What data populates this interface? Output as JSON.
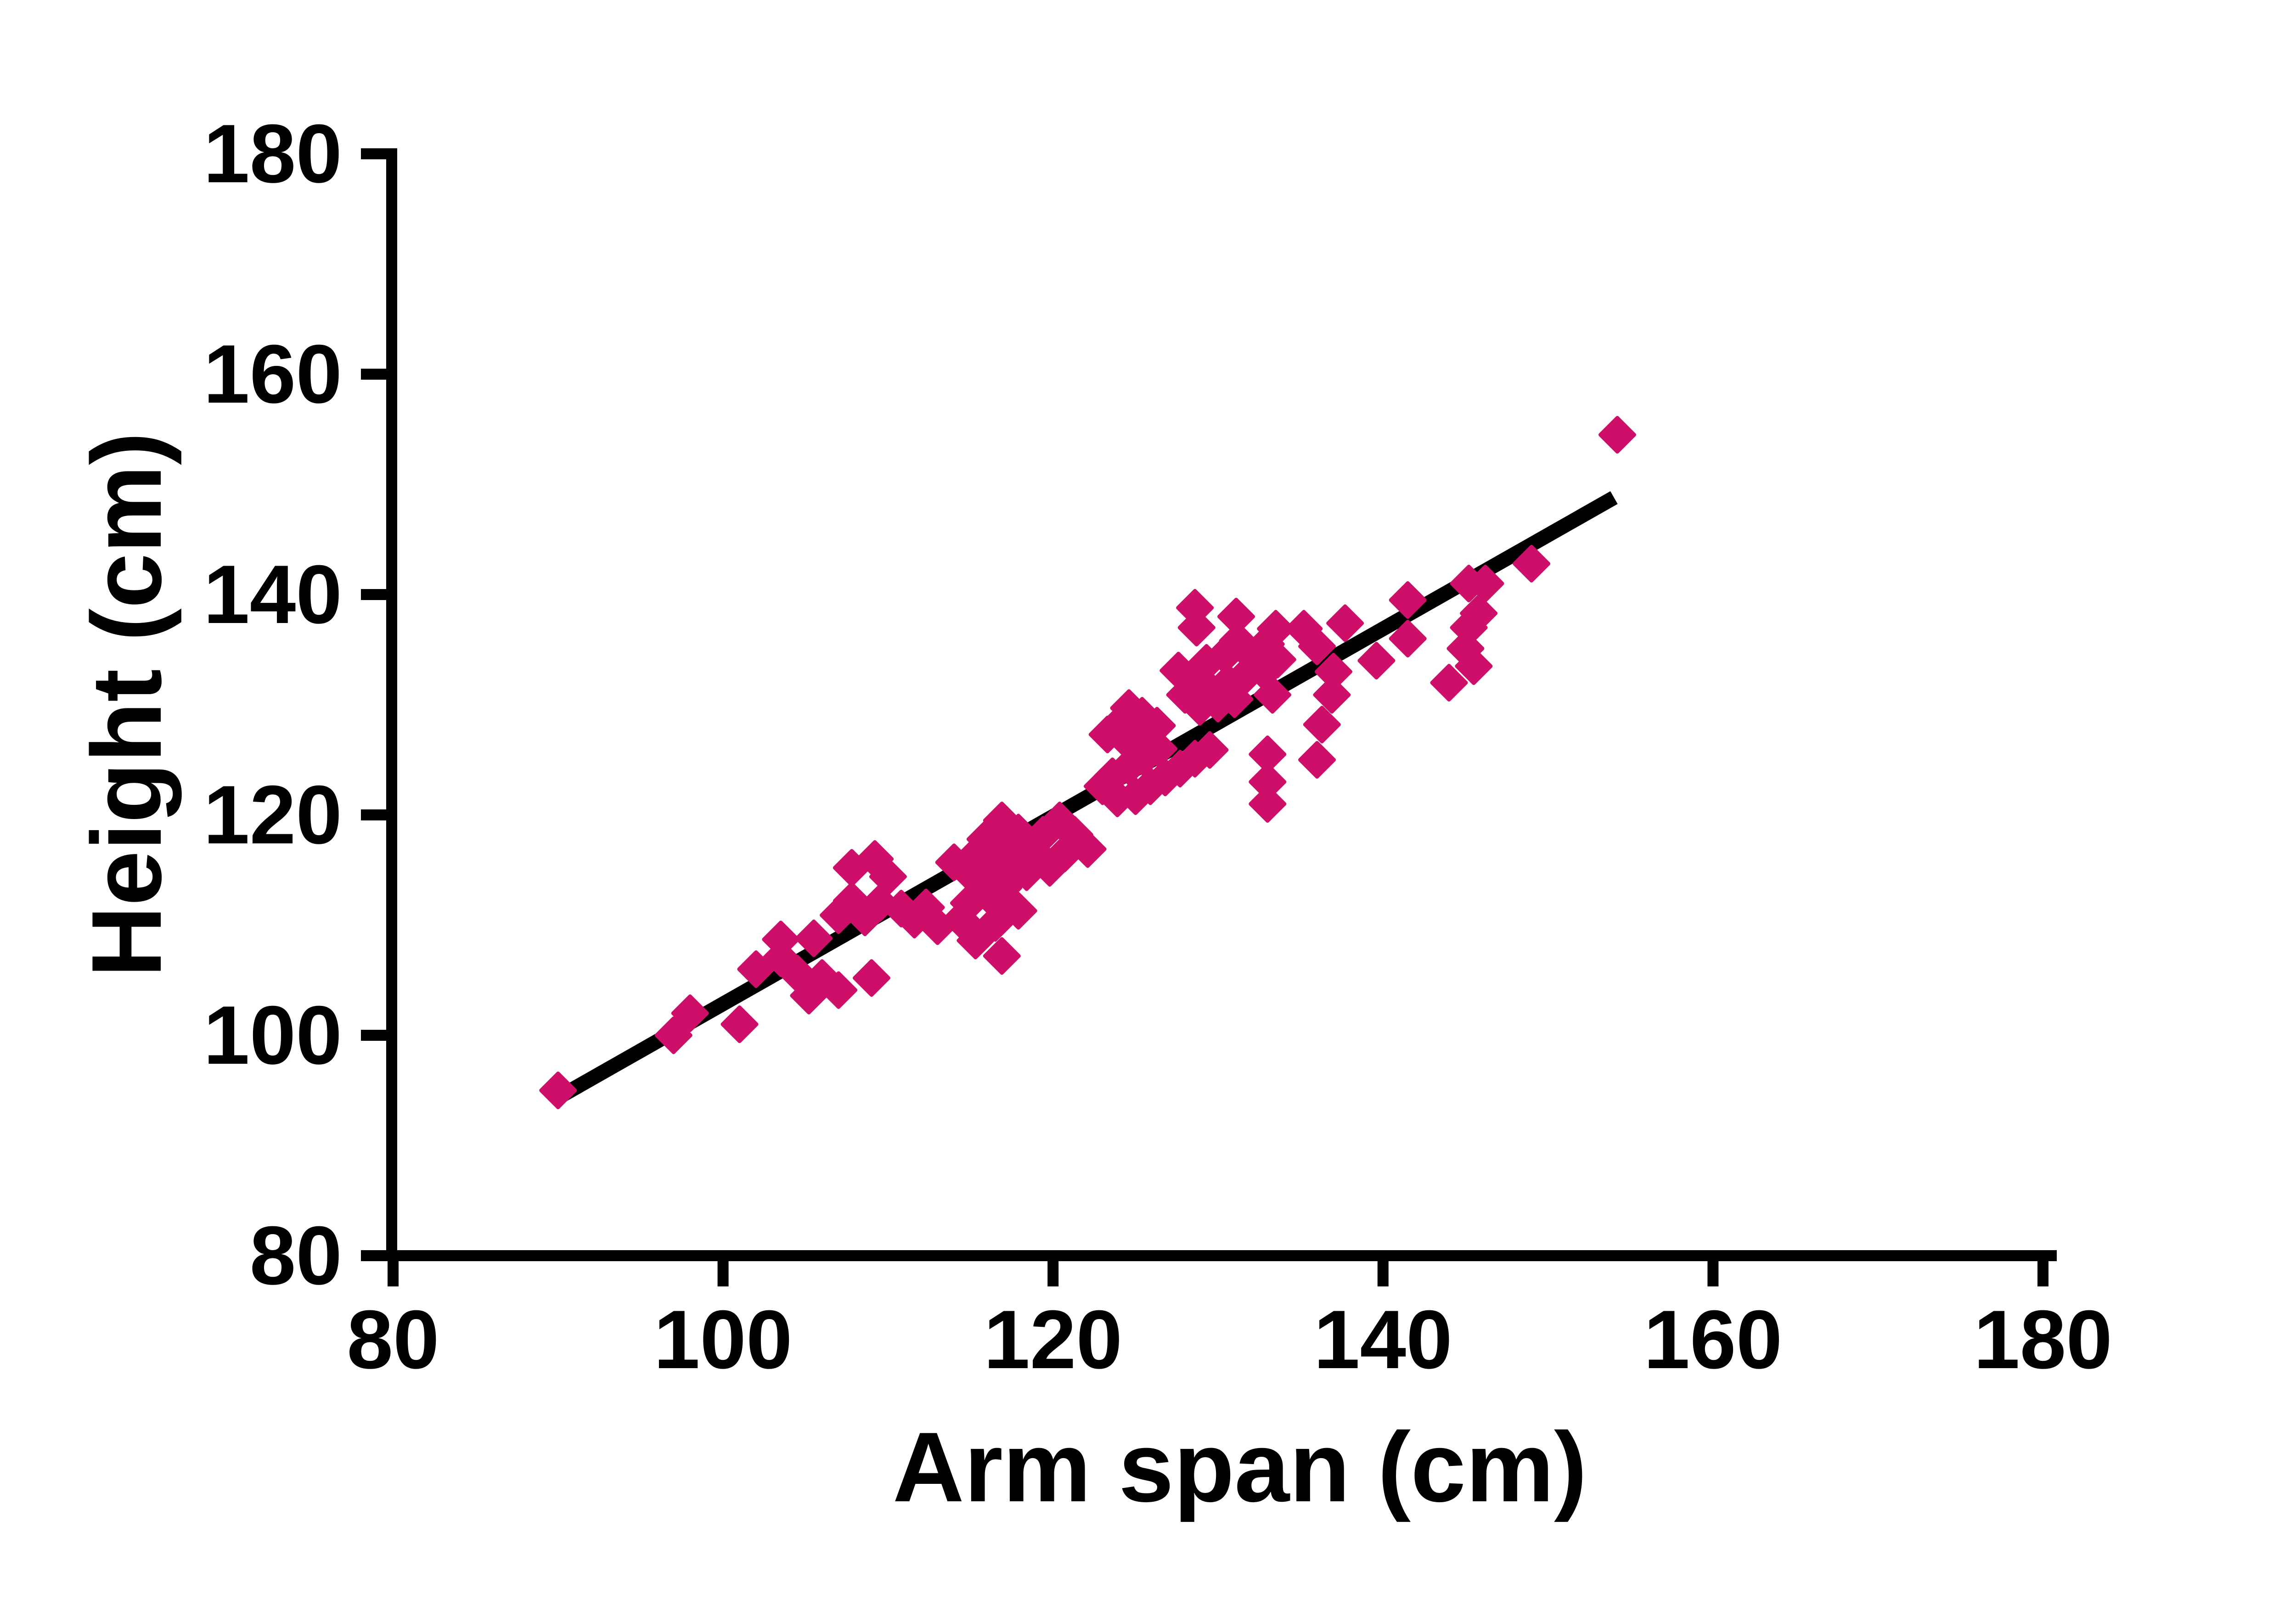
{
  "page": {
    "background": "#ffffff"
  },
  "chart_data": {
    "type": "scatter",
    "title": "",
    "xlabel": "Arm span (cm)",
    "ylabel": "Height (cm)",
    "xlim": [
      80,
      180
    ],
    "ylim": [
      80,
      180
    ],
    "x_ticks": [
      80,
      100,
      120,
      140,
      160,
      180
    ],
    "y_ticks": [
      80,
      100,
      120,
      140,
      160,
      180
    ],
    "grid": false,
    "legend": "none",
    "marker": {
      "shape": "diamond",
      "color": "#CE0F69",
      "size_units": 2
    },
    "axis_color": "#000000",
    "trendline": {
      "type": "linear",
      "x1": 90.3,
      "y1": 94.6,
      "x2": 154.0,
      "y2": 148.8,
      "color": "#000000"
    },
    "points": [
      [
        90,
        95
      ],
      [
        97,
        100
      ],
      [
        98,
        102
      ],
      [
        101,
        101
      ],
      [
        102,
        106
      ],
      [
        103.5,
        108.7
      ],
      [
        103.5,
        107
      ],
      [
        104.5,
        105.6
      ],
      [
        105.5,
        108.8
      ],
      [
        106,
        105.2
      ],
      [
        105.2,
        103.6
      ],
      [
        107,
        104.1
      ],
      [
        109,
        105.2
      ],
      [
        107.8,
        115.2
      ],
      [
        109.2,
        116
      ],
      [
        107.8,
        112.2
      ],
      [
        107,
        110.9
      ],
      [
        108.6,
        110.7
      ],
      [
        109.5,
        112
      ],
      [
        110,
        114.4
      ],
      [
        110.8,
        111.5
      ],
      [
        111.6,
        110.5
      ],
      [
        112.3,
        111.6
      ],
      [
        113,
        109.9
      ],
      [
        115.3,
        108.6
      ],
      [
        114.4,
        110.5
      ],
      [
        114.9,
        112
      ],
      [
        116.3,
        112.4
      ],
      [
        117,
        113.4
      ],
      [
        114,
        115.7
      ],
      [
        115.3,
        114.2
      ],
      [
        116,
        115
      ],
      [
        116.9,
        115.8
      ],
      [
        116.9,
        107.2
      ],
      [
        116.5,
        110.2
      ],
      [
        117.9,
        111.3
      ],
      [
        116.9,
        119.5
      ],
      [
        117.9,
        118.4
      ],
      [
        115.9,
        117.8
      ],
      [
        115.4,
        116.5
      ],
      [
        117.2,
        116.5
      ],
      [
        118.7,
        116.9
      ],
      [
        119.4,
        118.2
      ],
      [
        120.4,
        119.5
      ],
      [
        121.3,
        118.2
      ],
      [
        122.1,
        116.9
      ],
      [
        120.7,
        116.5
      ],
      [
        119.8,
        115.2
      ],
      [
        118.4,
        114.8
      ],
      [
        124.6,
        129.7
      ],
      [
        125.4,
        129
      ],
      [
        123.9,
        128.1
      ],
      [
        123.3,
        127.3
      ],
      [
        124.5,
        126.7
      ],
      [
        125.4,
        127.3
      ],
      [
        126.3,
        128.1
      ],
      [
        126.4,
        126
      ],
      [
        125.5,
        125.2
      ],
      [
        124.6,
        124.4
      ],
      [
        123.6,
        123.5
      ],
      [
        123,
        122.6
      ],
      [
        123.9,
        121.5
      ],
      [
        125,
        121.7
      ],
      [
        125.9,
        122.6
      ],
      [
        126.8,
        123.4
      ],
      [
        127.7,
        124.2
      ],
      [
        128.6,
        125.1
      ],
      [
        129.5,
        125.9
      ],
      [
        128,
        130.9
      ],
      [
        128.5,
        132.3
      ],
      [
        127.6,
        133.1
      ],
      [
        129.3,
        133.8
      ],
      [
        130.4,
        134.5
      ],
      [
        131.2,
        135.8
      ],
      [
        132.1,
        134.4
      ],
      [
        132.9,
        135.5
      ],
      [
        133.6,
        134.1
      ],
      [
        132.8,
        133
      ],
      [
        131.7,
        132.7
      ],
      [
        130.6,
        132
      ],
      [
        129.6,
        131.2
      ],
      [
        128.9,
        129.8
      ],
      [
        130,
        130.1
      ],
      [
        131,
        130.5
      ],
      [
        133.3,
        130.9
      ],
      [
        133,
        125.5
      ],
      [
        128.6,
        138.8
      ],
      [
        128.7,
        137
      ],
      [
        131.1,
        138
      ],
      [
        133.5,
        136.9
      ],
      [
        135.2,
        136.9
      ],
      [
        136,
        135.3
      ],
      [
        137.7,
        137.4
      ],
      [
        137,
        133
      ],
      [
        136.9,
        130.9
      ],
      [
        136.3,
        128.2
      ],
      [
        136,
        125
      ],
      [
        133,
        123
      ],
      [
        133,
        121
      ],
      [
        139.6,
        134
      ],
      [
        141.5,
        139.5
      ],
      [
        141.5,
        136
      ],
      [
        145.2,
        141
      ],
      [
        146.2,
        141
      ],
      [
        145.8,
        138.3
      ],
      [
        145.2,
        137
      ],
      [
        145,
        135.1
      ],
      [
        145.5,
        133.5
      ],
      [
        149,
        142.8
      ],
      [
        144,
        132
      ],
      [
        154.2,
        154.5
      ]
    ]
  }
}
